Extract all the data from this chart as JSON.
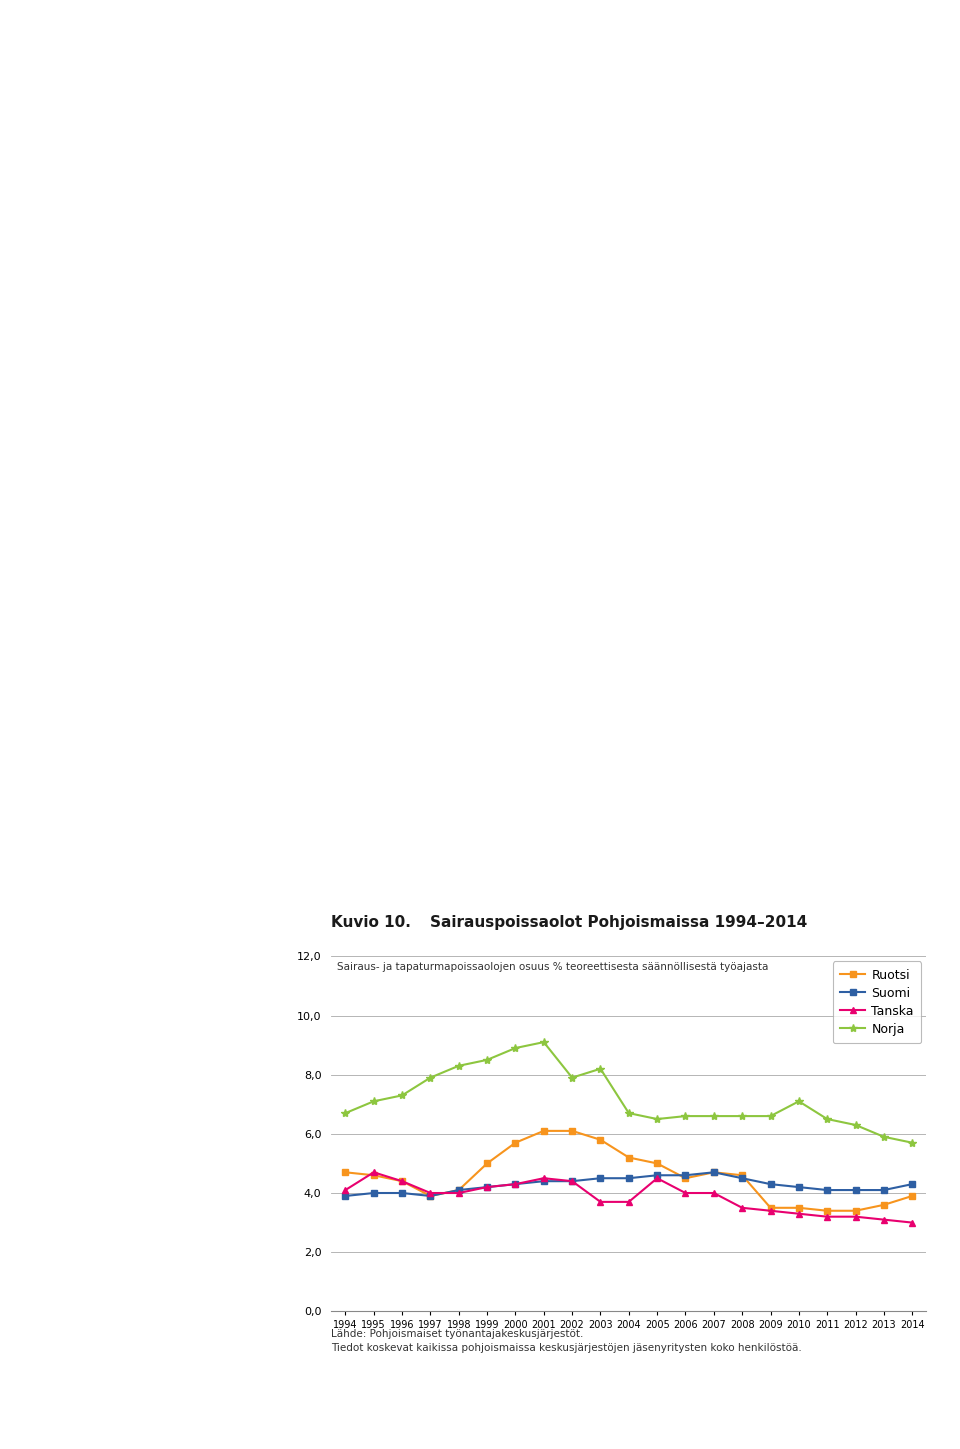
{
  "title1": "Kuvio 10.",
  "title2": "  Sairauspoissaolot Pohjoismaissa 1994–2014",
  "subtitle": "Sairaus- ja tapaturmapoissaolojen osuus % teoreettisesta säännöllisestä työajasta",
  "ylim": [
    0.0,
    12.0
  ],
  "yticks": [
    0.0,
    2.0,
    4.0,
    6.0,
    8.0,
    10.0,
    12.0
  ],
  "years": [
    1994,
    1995,
    1996,
    1997,
    1998,
    1999,
    2000,
    2001,
    2002,
    2003,
    2004,
    2005,
    2006,
    2007,
    2008,
    2009,
    2010,
    2011,
    2012,
    2013,
    2014
  ],
  "ruotsi": [
    4.7,
    4.6,
    4.4,
    3.9,
    4.1,
    5.0,
    5.7,
    6.1,
    6.1,
    5.8,
    5.2,
    5.0,
    4.5,
    4.7,
    4.6,
    3.5,
    3.5,
    3.4,
    3.4,
    3.6,
    3.9
  ],
  "suomi": [
    3.9,
    4.0,
    4.0,
    3.9,
    4.1,
    4.2,
    4.3,
    4.4,
    4.4,
    4.5,
    4.5,
    4.6,
    4.6,
    4.7,
    4.5,
    4.3,
    4.2,
    4.1,
    4.1,
    4.1,
    4.3
  ],
  "tanska": [
    4.1,
    4.7,
    4.4,
    4.0,
    4.0,
    4.2,
    4.3,
    4.5,
    4.4,
    3.7,
    3.7,
    4.5,
    4.0,
    4.0,
    3.5,
    3.4,
    3.3,
    3.2,
    3.2,
    3.1,
    3.0
  ],
  "norja": [
    6.7,
    7.1,
    7.3,
    7.9,
    8.3,
    8.5,
    8.9,
    9.1,
    7.9,
    8.2,
    6.7,
    6.5,
    6.6,
    6.6,
    6.6,
    6.6,
    7.1,
    6.5,
    6.3,
    5.9,
    5.7
  ],
  "colors": {
    "ruotsi": "#F7941D",
    "suomi": "#2E5FA3",
    "tanska": "#E8006F",
    "norja": "#8DC63F"
  },
  "source_line1": "Lähde: Pohjoismaiset työnantajakeskusjärjestöt.",
  "source_line2": "Tiedot koskevat kaikissa pohjoismaissa keskusjärjestöjen jäsenyritysten koko henkilöstöä.",
  "orange_square_color": "#F7941D",
  "grid_color": "#aaaaaa",
  "border_color": "#888888"
}
